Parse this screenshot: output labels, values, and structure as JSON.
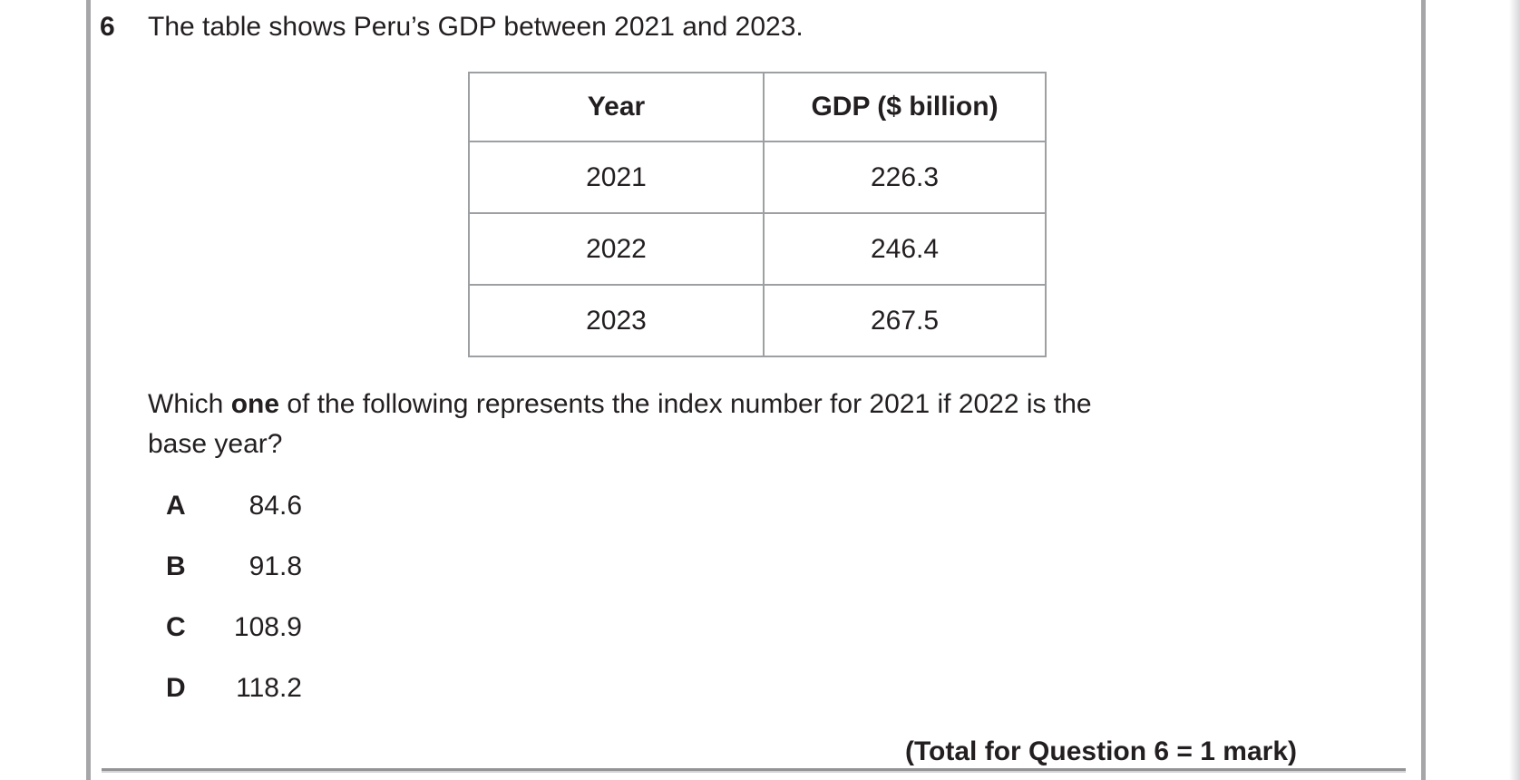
{
  "page": {
    "question_number": "6",
    "intro": "The table shows Peru’s GDP between 2021 and 2023."
  },
  "table": {
    "headers": [
      "Year",
      "GDP ($ billion)"
    ],
    "rows": [
      [
        "2021",
        "226.3"
      ],
      [
        "2022",
        "246.4"
      ],
      [
        "2023",
        "267.5"
      ]
    ]
  },
  "question": {
    "line1_pre": "Which ",
    "line1_bold": "one",
    "line1_post": " of the following represents the index number for 2021 if 2022 is the",
    "line2": "base year?"
  },
  "options": [
    {
      "label": "A",
      "value": "84.6"
    },
    {
      "label": "B",
      "value": "91.8"
    },
    {
      "label": "C",
      "value": "108.9"
    },
    {
      "label": "D",
      "value": "118.2"
    }
  ],
  "footer": {
    "total": "(Total for Question 6 = 1 mark)"
  },
  "colors": {
    "text": "#231f20",
    "table_border": "#9da0a3",
    "margin_rule": "#a6a6a9",
    "bottom_rule": "#939396"
  }
}
